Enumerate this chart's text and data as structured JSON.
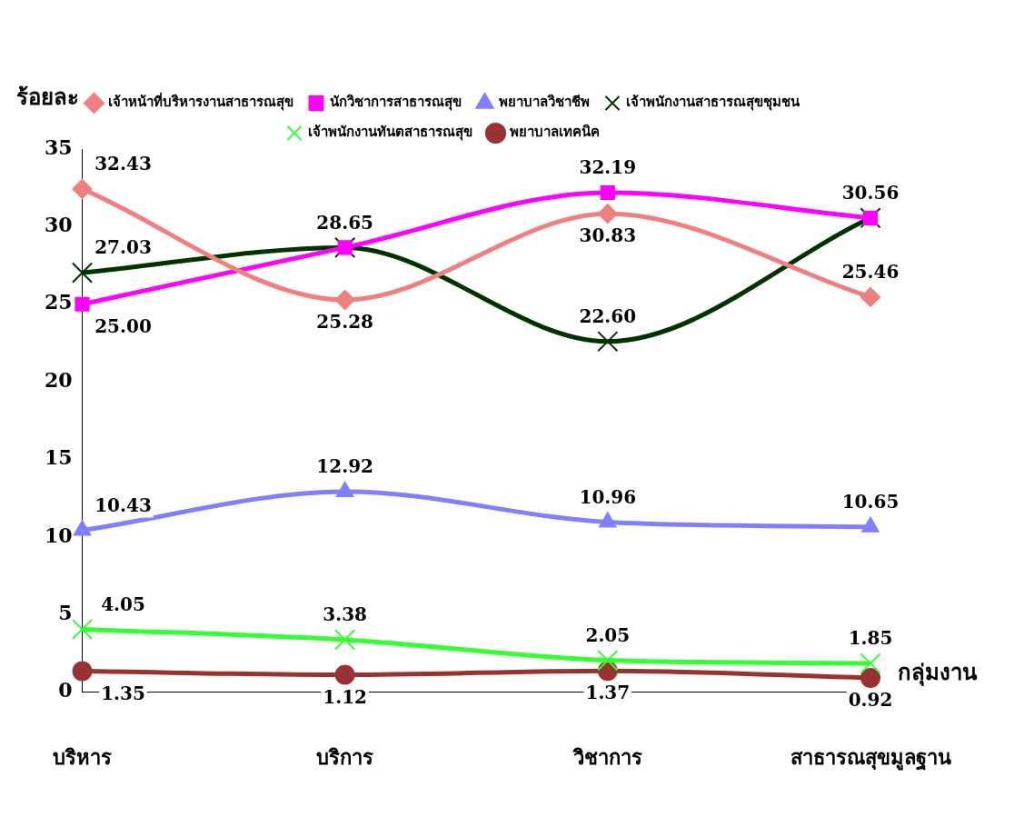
{
  "chart_data": {
    "type": "line",
    "xlabel": "กลุ่มงาน",
    "ylabel": "ร้อยละ",
    "categories": [
      "บริหาร",
      "บริการ",
      "วิชาการ",
      "สาธารณสุขมูลฐาน"
    ],
    "ylim": [
      0,
      35
    ],
    "yticks": [
      0,
      5,
      10,
      15,
      20,
      25,
      30,
      35
    ],
    "grid": false,
    "legend": "top",
    "data_labels": true,
    "series": [
      {
        "name": "เจ้าหน้าที่บริหารงานสาธารณสุข",
        "color": "#f08080",
        "marker": "diamond",
        "values": [
          32.43,
          25.28,
          30.83,
          25.46
        ],
        "value_labels": [
          "32.43",
          "25.28",
          "30.83",
          "25.46"
        ]
      },
      {
        "name": "นักวิชาการสาธารณสุข",
        "color": "#ff00ff",
        "marker": "square",
        "values": [
          25.0,
          28.65,
          32.19,
          30.56
        ],
        "value_labels": [
          "25.00",
          "28.65",
          "32.19",
          "30.56"
        ]
      },
      {
        "name": "พยาบาลวิชาชีพ",
        "color": "#8080ff",
        "marker": "triangle",
        "values": [
          10.43,
          12.92,
          10.96,
          10.65
        ],
        "value_labels": [
          "10.43",
          "12.92",
          "10.96",
          "10.65"
        ]
      },
      {
        "name": "เจ้าพนักงานสาธารณสุขชุมชน",
        "color": "#003300",
        "marker": "cross",
        "values": [
          27.03,
          28.65,
          22.6,
          30.56
        ],
        "value_labels": [
          "27.03",
          null,
          "22.60",
          null
        ]
      },
      {
        "name": "เจ้าพนักงานทันตสาธารณสุข",
        "color": "#33ff33",
        "marker": "cross",
        "values": [
          4.05,
          3.38,
          2.05,
          1.85
        ],
        "value_labels": [
          "4.05",
          "3.38",
          "2.05",
          "1.85"
        ]
      },
      {
        "name": "พยาบาลเทคนิค",
        "color": "#993333",
        "marker": "circle",
        "values": [
          1.35,
          1.12,
          1.37,
          0.92
        ],
        "value_labels": [
          "1.35",
          "1.12",
          "1.37",
          "0.92"
        ]
      }
    ]
  }
}
